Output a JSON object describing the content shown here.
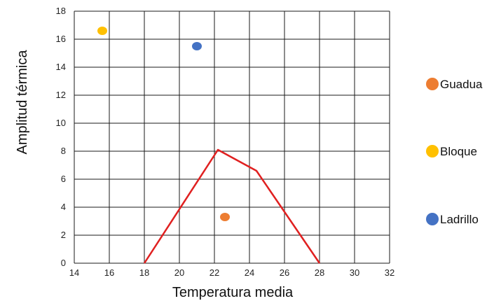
{
  "chart_data": {
    "type": "scatter",
    "xlabel": "Temperatura media",
    "ylabel": "Amplitud térmica",
    "xlim": [
      14,
      32
    ],
    "ylim": [
      0,
      18
    ],
    "xticks": [
      "14",
      "16",
      "18",
      "20",
      "22",
      "24",
      "26",
      "28",
      "30",
      "32"
    ],
    "yticks": [
      "0",
      "2",
      "4",
      "6",
      "8",
      "10",
      "12",
      "14",
      "16",
      "18"
    ],
    "grid": true,
    "legend_position": "right",
    "series": [
      {
        "name": "Guadua",
        "color": "#ED7D31",
        "points": [
          {
            "x": 22.6,
            "y": 3.3
          }
        ]
      },
      {
        "name": "Bloque",
        "color": "#FFC000",
        "points": [
          {
            "x": 15.6,
            "y": 16.6
          }
        ]
      },
      {
        "name": "Ladrillo",
        "color": "#4472C4",
        "points": [
          {
            "x": 21.0,
            "y": 15.5
          }
        ]
      }
    ],
    "line": {
      "color": "#E02020",
      "points": [
        {
          "x": 18.0,
          "y": 0
        },
        {
          "x": 22.2,
          "y": 8.1
        },
        {
          "x": 24.4,
          "y": 6.6
        },
        {
          "x": 28.0,
          "y": 0
        }
      ]
    }
  }
}
